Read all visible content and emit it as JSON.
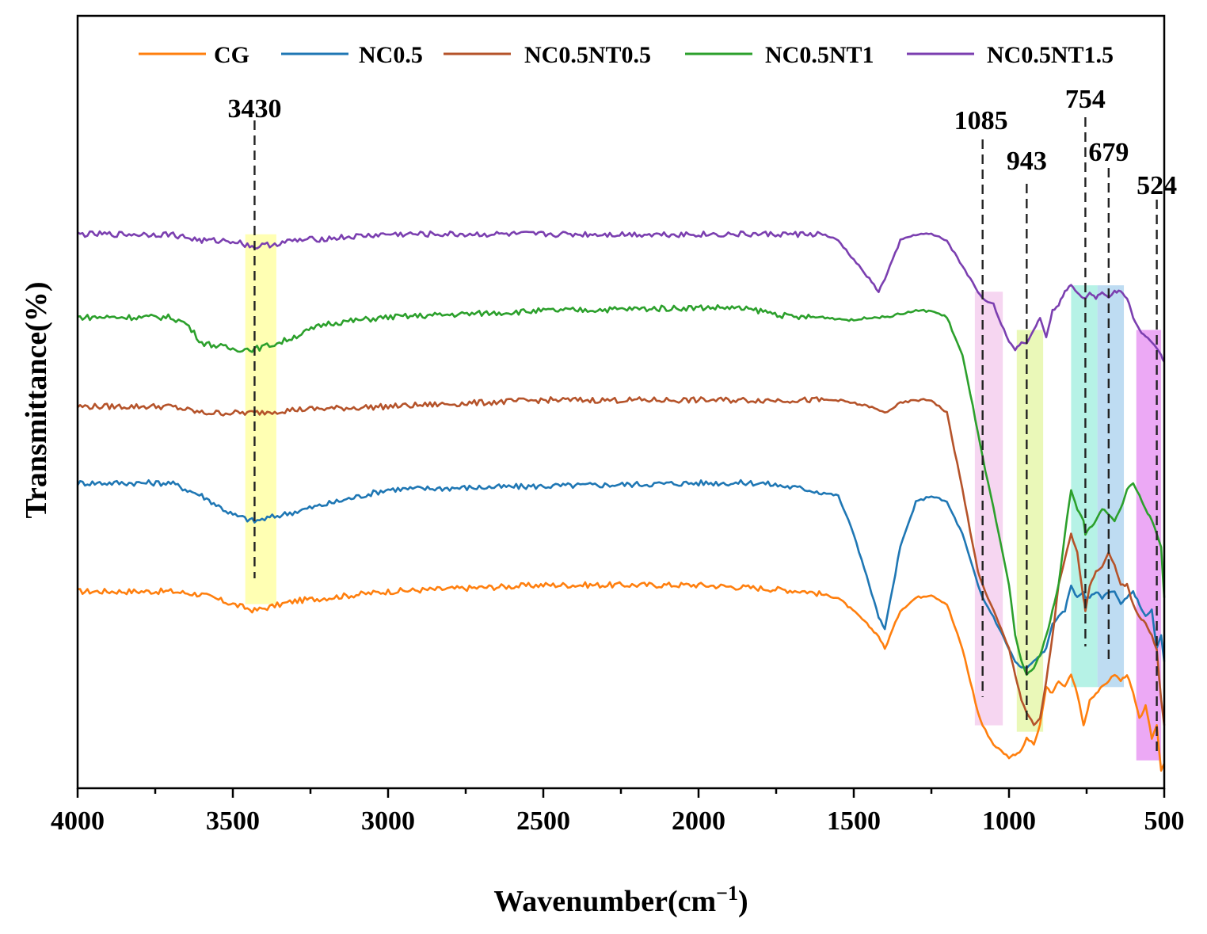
{
  "chart_data": {
    "type": "line",
    "title": "",
    "xlabel": "Wavenumber(cm",
    "xlabel_sup": "−1",
    "xlabel_close": ")",
    "ylabel": "Transmittance(%)",
    "xlim": [
      4000,
      500
    ],
    "ylim": [
      0,
      100
    ],
    "xticks": [
      4000,
      3500,
      3000,
      2500,
      2000,
      1500,
      1000,
      500
    ],
    "legend_position": "top",
    "series": [
      {
        "name": "CG",
        "color": "#ff7f0e",
        "x": [
          4000,
          3700,
          3600,
          3500,
          3430,
          3300,
          3000,
          2500,
          2000,
          1800,
          1650,
          1550,
          1480,
          1420,
          1400,
          1350,
          1300,
          1250,
          1200,
          1150,
          1100,
          1085,
          1050,
          1000,
          980,
          960,
          943,
          920,
          900,
          880,
          860,
          840,
          820,
          800,
          780,
          760,
          754,
          740,
          720,
          700,
          679,
          660,
          640,
          620,
          600,
          580,
          560,
          540,
          524,
          510,
          500
        ],
        "y": [
          29,
          29,
          28.5,
          27,
          26,
          27.5,
          29,
          30,
          30,
          29.5,
          29,
          28,
          25,
          22,
          20,
          26,
          28,
          28.5,
          27,
          20,
          10,
          8,
          5,
          3,
          3.5,
          4,
          6,
          5,
          8,
          14,
          13,
          15,
          14,
          16,
          13,
          8,
          9,
          12,
          13,
          14,
          15,
          16,
          15,
          16,
          13,
          9,
          11,
          6,
          8,
          1,
          2
        ]
      },
      {
        "name": "NC0.5",
        "color": "#1f77b4",
        "x": [
          4000,
          3700,
          3600,
          3500,
          3430,
          3300,
          3000,
          2500,
          2000,
          1800,
          1650,
          1550,
          1500,
          1450,
          1420,
          1400,
          1350,
          1300,
          1250,
          1200,
          1150,
          1100,
          1085,
          1050,
          1000,
          980,
          960,
          943,
          920,
          900,
          880,
          860,
          840,
          820,
          800,
          780,
          760,
          754,
          740,
          720,
          700,
          679,
          660,
          640,
          620,
          600,
          580,
          560,
          540,
          524,
          510,
          500
        ],
        "y": [
          46,
          46,
          44,
          41,
          40,
          41.5,
          45,
          45.5,
          46,
          46,
          45,
          44,
          38,
          30,
          25,
          23,
          36,
          43,
          44,
          43,
          38,
          30,
          28,
          25,
          20,
          18,
          17,
          17,
          18,
          19,
          20,
          24,
          25,
          26,
          30,
          28,
          29,
          28,
          28,
          29,
          28,
          29,
          29,
          27,
          28,
          29,
          27,
          25,
          26,
          20,
          22,
          18
        ]
      },
      {
        "name": "NC0.5NT0.5",
        "color": "#b5532a",
        "x": [
          4000,
          3700,
          3600,
          3500,
          3430,
          3300,
          3000,
          2500,
          2000,
          1800,
          1650,
          1550,
          1450,
          1400,
          1350,
          1300,
          1250,
          1200,
          1150,
          1100,
          1085,
          1050,
          1000,
          980,
          960,
          943,
          920,
          900,
          880,
          860,
          840,
          820,
          800,
          780,
          760,
          754,
          740,
          720,
          700,
          679,
          660,
          640,
          620,
          600,
          580,
          560,
          540,
          524,
          510,
          500
        ],
        "y": [
          58,
          58,
          57,
          57,
          57,
          57.5,
          58,
          59,
          59,
          59,
          59,
          59,
          58,
          57,
          58.5,
          59,
          59,
          57,
          45,
          32,
          30,
          26,
          20,
          16,
          12,
          10,
          8,
          9,
          15,
          22,
          30,
          34,
          38,
          35,
          28,
          26,
          30,
          32,
          33,
          35,
          33,
          30,
          30,
          27,
          25,
          24,
          22,
          20,
          12,
          8
        ]
      },
      {
        "name": "NC0.5NT1",
        "color": "#2ca02c",
        "x": [
          4000,
          3700,
          3650,
          3600,
          3500,
          3430,
          3350,
          3200,
          3000,
          2500,
          2000,
          1900,
          1800,
          1700,
          1600,
          1500,
          1450,
          1400,
          1350,
          1300,
          1250,
          1200,
          1150,
          1100,
          1085,
          1050,
          1000,
          980,
          960,
          943,
          920,
          900,
          880,
          860,
          840,
          820,
          800,
          780,
          760,
          754,
          740,
          720,
          700,
          679,
          660,
          640,
          620,
          600,
          580,
          560,
          540,
          524,
          510,
          500
        ],
        "y": [
          72,
          72,
          71,
          68,
          67,
          67,
          68,
          71,
          72,
          73,
          73.5,
          73.5,
          73,
          72,
          72,
          71.5,
          72,
          72,
          72.5,
          73,
          73,
          72,
          66,
          54,
          50,
          42,
          30,
          22,
          18,
          16,
          17,
          19,
          22,
          26,
          30,
          38,
          45,
          42,
          40,
          38,
          39,
          40,
          42,
          41,
          40,
          42,
          45,
          46,
          44,
          42,
          40,
          38,
          36,
          28
        ]
      },
      {
        "name": "NC0.5NT1.5",
        "color": "#7b3fb0",
        "x": [
          4000,
          3700,
          3600,
          3500,
          3430,
          3300,
          3000,
          2800,
          2500,
          2000,
          1800,
          1600,
          1550,
          1500,
          1450,
          1420,
          1400,
          1350,
          1300,
          1250,
          1200,
          1150,
          1100,
          1085,
          1050,
          1000,
          980,
          960,
          943,
          920,
          900,
          880,
          860,
          840,
          820,
          800,
          780,
          760,
          754,
          740,
          720,
          700,
          679,
          660,
          640,
          620,
          600,
          580,
          560,
          540,
          524,
          510,
          500
        ],
        "y": [
          85,
          85,
          84,
          84,
          83,
          84,
          85,
          85,
          85,
          85,
          85,
          85,
          84,
          81,
          78,
          76,
          78,
          84,
          85,
          85,
          84,
          80,
          76,
          75,
          74,
          68,
          67,
          68,
          68,
          70,
          72,
          69,
          73,
          74,
          76,
          77,
          76,
          75,
          75,
          76,
          75,
          76,
          75,
          76,
          76,
          75,
          72,
          70,
          69,
          68,
          67,
          66,
          65
        ]
      }
    ],
    "bands": [
      {
        "x0": 3460,
        "x1": 3360,
        "ylo": 27,
        "yhi": 85,
        "color": "#ffff9a"
      },
      {
        "x0": 1110,
        "x1": 1020,
        "ylo": 8,
        "yhi": 76,
        "color": "#f3c8ec"
      },
      {
        "x0": 975,
        "x1": 890,
        "ylo": 7,
        "yhi": 70,
        "color": "#e3f5a0"
      },
      {
        "x0": 800,
        "x1": 715,
        "ylo": 14,
        "yhi": 77,
        "color": "#9deede"
      },
      {
        "x0": 715,
        "x1": 630,
        "ylo": 14,
        "yhi": 77,
        "color": "#a8d0ee"
      },
      {
        "x0": 590,
        "x1": 510,
        "ylo": 2.5,
        "yhi": 70,
        "color": "#e58cf2"
      }
    ],
    "peak_markers": [
      {
        "x": 3430,
        "label": "3430"
      },
      {
        "x": 1085,
        "label": "1085"
      },
      {
        "x": 943,
        "label": "943"
      },
      {
        "x": 754,
        "label": "754"
      },
      {
        "x": 679,
        "label": "679"
      },
      {
        "x": 524,
        "label": "524"
      }
    ]
  }
}
